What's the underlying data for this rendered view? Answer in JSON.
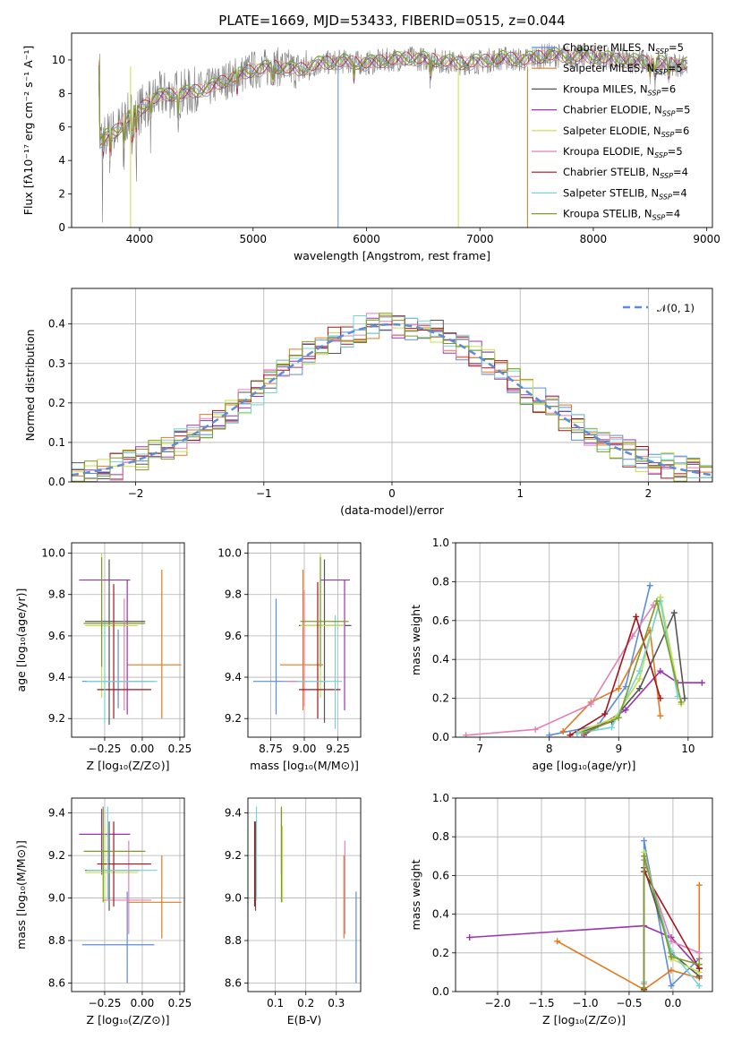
{
  "figure": {
    "title": "PLATE=1669, MJD=53433, FIBERID=0515, z=0.044"
  },
  "colors": {
    "blue": "#5b8dd9",
    "orange": "#e07b20",
    "gray": "#555555",
    "purple": "#9b33b0",
    "lime": "#c5e04a",
    "pink": "#e380b8",
    "darkred": "#a5141b",
    "cyan": "#76d3d8",
    "olive": "#7f9b25",
    "data": "#808080",
    "grid": "#b0b0b0"
  },
  "chart_data": [
    {
      "id": "spectrum",
      "type": "line",
      "xlabel": "wavelength [Angstrom, rest frame]",
      "ylabel": "Flux [fλ10⁻¹⁷ erg cm⁻² s⁻¹ A⁻¹]",
      "xlim": [
        3400,
        9050
      ],
      "ylim": [
        0,
        11.6
      ],
      "xticks": [
        "4000",
        "5000",
        "6000",
        "7000",
        "8000",
        "9000"
      ],
      "yticks": [
        "0",
        "2",
        "4",
        "6",
        "8",
        "10"
      ],
      "grid": false,
      "legend": "upper-right",
      "data_curve": {
        "x": [
          3650,
          3800,
          3900,
          4000,
          4100,
          4200,
          4400,
          4600,
          4800,
          5000,
          5200,
          5400,
          5600,
          5800,
          6000,
          6200,
          6400,
          6600,
          6800,
          7000,
          7200,
          7400,
          7600,
          7800,
          8000,
          8200,
          8400,
          8600,
          8800
        ],
        "y": [
          5.2,
          5.8,
          6.6,
          7.0,
          7.6,
          7.9,
          8.0,
          8.3,
          8.9,
          9.4,
          9.6,
          9.4,
          9.8,
          9.9,
          9.8,
          10.0,
          10.1,
          10.0,
          9.8,
          9.9,
          10.1,
          10.0,
          10.3,
          10.2,
          10.2,
          10.0,
          9.9,
          9.8,
          9.7
        ]
      },
      "series": [
        {
          "label": "Chabrier MILES, N",
          "sub": "SSP",
          "tail": "=5"
        },
        {
          "label": "Salpeter MILES, N",
          "sub": "SSP",
          "tail": "=5"
        },
        {
          "label": "Kroupa MILES, N",
          "sub": "SSP",
          "tail": "=6"
        },
        {
          "label": "Chabrier ELODIE, N",
          "sub": "SSP",
          "tail": "=5"
        },
        {
          "label": "Salpeter ELODIE, N",
          "sub": "SSP",
          "tail": "=6"
        },
        {
          "label": "Kroupa ELODIE, N",
          "sub": "SSP",
          "tail": "=5"
        },
        {
          "label": "Chabrier STELIB, N",
          "sub": "SSP",
          "tail": "=4"
        },
        {
          "label": "Salpeter STELIB, N",
          "sub": "SSP",
          "tail": "=4"
        },
        {
          "label": "Kroupa STELIB, N",
          "sub": "SSP",
          "tail": "=4"
        }
      ]
    },
    {
      "id": "residuals",
      "type": "bar",
      "xlabel": "(data-model)/error",
      "ylabel": "Normed distribution",
      "xlim": [
        -2.5,
        2.5
      ],
      "ylim": [
        0,
        0.49
      ],
      "xticks": [
        "−2",
        "−1",
        "0",
        "1",
        "2"
      ],
      "yticks": [
        "0.0",
        "0.1",
        "0.2",
        "0.3",
        "0.4"
      ],
      "grid": true,
      "legend": "upper-right",
      "gaussian_label": "𝒩(0, 1)"
    },
    {
      "id": "age-vs-z",
      "type": "scatter",
      "xlabel": "Z [log₁₀(Z/Z⊙)]",
      "ylabel": "age  [log₁₀(age/yr)]",
      "xlim": [
        -0.47,
        0.28
      ],
      "ylim": [
        9.11,
        10.05
      ],
      "xticks": [
        "−0.25",
        "0.00",
        "0.25"
      ],
      "yticks": [
        "9.2",
        "9.4",
        "9.6",
        "9.8",
        "10.0"
      ],
      "points": [
        {
          "c": "blue",
          "x": -0.16,
          "y": 9.38,
          "xe": [
            -0.4,
            0.08
          ],
          "ye": [
            9.25,
            9.63
          ]
        },
        {
          "c": "orange",
          "x": 0.13,
          "y": 9.46,
          "xe": [
            -0.1,
            0.26
          ],
          "ye": [
            9.2,
            9.92
          ]
        },
        {
          "c": "gray",
          "x": -0.22,
          "y": 9.67,
          "xe": [
            -0.38,
            0.02
          ],
          "ye": [
            9.17,
            9.97
          ]
        },
        {
          "c": "purple",
          "x": -0.1,
          "y": 9.87,
          "xe": [
            -0.42,
            -0.08
          ],
          "ye": [
            9.22,
            9.87
          ]
        },
        {
          "c": "lime",
          "x": -0.27,
          "y": 9.65,
          "xe": [
            -0.38,
            -0.03
          ],
          "ye": [
            9.3,
            10.0
          ]
        },
        {
          "c": "pink",
          "x": -0.12,
          "y": 9.38,
          "xe": [
            -0.26,
            0.04
          ],
          "ye": [
            9.24,
            9.78
          ]
        },
        {
          "c": "darkred",
          "x": -0.19,
          "y": 9.34,
          "xe": [
            -0.3,
            0.06
          ],
          "ye": [
            9.2,
            9.85
          ]
        },
        {
          "c": "cyan",
          "x": -0.25,
          "y": 9.38,
          "xe": [
            -0.37,
            0.1
          ],
          "ye": [
            9.18,
            9.66
          ]
        },
        {
          "c": "olive",
          "x": -0.27,
          "y": 9.66,
          "xe": [
            -0.39,
            0.02
          ],
          "ye": [
            9.45,
            9.98
          ]
        }
      ]
    },
    {
      "id": "age-vs-mass",
      "type": "scatter",
      "xlabel": "mass [log₁₀(M/M⊙)]",
      "ylabel": "",
      "xlim": [
        8.58,
        9.42
      ],
      "ylim": [
        9.11,
        10.05
      ],
      "xticks": [
        "8.75",
        "9.00",
        "9.25"
      ],
      "yticks": [
        "9.2",
        "9.4",
        "9.6",
        "9.8",
        "10.0"
      ],
      "points": [
        {
          "c": "blue",
          "x": 8.79,
          "y": 9.38,
          "xe": [
            8.62,
            9.02
          ],
          "ye": [
            9.22,
            9.78
          ]
        },
        {
          "c": "orange",
          "x": 8.99,
          "y": 9.46,
          "xe": [
            8.82,
            9.14
          ],
          "ye": [
            9.24,
            9.92
          ]
        },
        {
          "c": "gray",
          "x": 9.15,
          "y": 9.65,
          "xe": [
            8.96,
            9.35
          ],
          "ye": [
            9.18,
            9.97
          ]
        },
        {
          "c": "purple",
          "x": 9.3,
          "y": 9.87,
          "xe": [
            9.12,
            9.34
          ],
          "ye": [
            9.24,
            9.87
          ]
        },
        {
          "c": "lime",
          "x": 9.12,
          "y": 9.65,
          "xe": [
            8.97,
            9.3
          ],
          "ye": [
            9.3,
            10.0
          ]
        },
        {
          "c": "pink",
          "x": 9.0,
          "y": 9.38,
          "xe": [
            8.86,
            9.16
          ],
          "ye": [
            9.26,
            9.82
          ]
        },
        {
          "c": "darkred",
          "x": 9.1,
          "y": 9.34,
          "xe": [
            8.96,
            9.27
          ],
          "ye": [
            9.2,
            9.86
          ]
        },
        {
          "c": "cyan",
          "x": 9.23,
          "y": 9.38,
          "xe": [
            8.95,
            9.28
          ],
          "ye": [
            9.15,
            9.7
          ]
        },
        {
          "c": "olive",
          "x": 9.12,
          "y": 9.67,
          "xe": [
            8.97,
            9.33
          ],
          "ye": [
            9.45,
            9.98
          ]
        }
      ]
    },
    {
      "id": "weight-vs-age",
      "type": "line",
      "xlabel": "age  [log₁₀(age/yr)]",
      "ylabel": "mass weight",
      "xlim": [
        6.65,
        10.35
      ],
      "ylim": [
        0,
        1.0
      ],
      "xticks": [
        "7",
        "8",
        "9",
        "10"
      ],
      "yticks": [
        "0.0",
        "0.2",
        "0.4",
        "0.6",
        "0.8",
        "1.0"
      ],
      "series": [
        {
          "c": "blue",
          "x": [
            8.0,
            8.7,
            9.1,
            9.45
          ],
          "y": [
            0.01,
            0.06,
            0.26,
            0.78
          ]
        },
        {
          "c": "orange",
          "x": [
            8.2,
            8.6,
            9.0,
            9.45,
            9.6
          ],
          "y": [
            0.03,
            0.18,
            0.25,
            0.55,
            0.11
          ]
        },
        {
          "c": "gray",
          "x": [
            8.4,
            8.9,
            9.3,
            9.8,
            9.95
          ],
          "y": [
            0.02,
            0.08,
            0.25,
            0.64,
            0.2
          ]
        },
        {
          "c": "purple",
          "x": [
            8.5,
            9.1,
            9.6,
            9.85,
            10.2
          ],
          "y": [
            0.01,
            0.14,
            0.34,
            0.28,
            0.28
          ]
        },
        {
          "c": "lime",
          "x": [
            8.3,
            8.95,
            9.3,
            9.6,
            9.9
          ],
          "y": [
            0.01,
            0.1,
            0.3,
            0.72,
            0.17
          ]
        },
        {
          "c": "pink",
          "x": [
            6.8,
            7.8,
            8.6,
            9.2,
            9.5
          ],
          "y": [
            0.01,
            0.04,
            0.17,
            0.52,
            0.68
          ]
        },
        {
          "c": "darkred",
          "x": [
            8.3,
            8.8,
            9.25,
            9.6
          ],
          "y": [
            0.01,
            0.12,
            0.62,
            0.2
          ]
        },
        {
          "c": "cyan",
          "x": [
            8.4,
            8.9,
            9.3,
            9.6,
            9.85
          ],
          "y": [
            0.02,
            0.05,
            0.34,
            0.7,
            0.21
          ]
        },
        {
          "c": "olive",
          "x": [
            8.5,
            9.0,
            9.55,
            9.9
          ],
          "y": [
            0.02,
            0.1,
            0.7,
            0.18
          ]
        }
      ]
    },
    {
      "id": "mass-vs-z",
      "type": "scatter",
      "xlabel": "Z [log₁₀(Z/Z⊙)]",
      "ylabel": "mass [log₁₀(M/M⊙)]",
      "xlim": [
        -0.47,
        0.28
      ],
      "ylim": [
        8.56,
        9.47
      ],
      "xticks": [
        "−0.25",
        "0.00",
        "0.25"
      ],
      "yticks": [
        "8.6",
        "8.8",
        "9.0",
        "9.2",
        "9.4"
      ],
      "points": [
        {
          "c": "blue",
          "x": -0.1,
          "y": 8.78,
          "xe": [
            -0.4,
            0.08
          ],
          "ye": [
            8.6,
            9.03
          ]
        },
        {
          "c": "orange",
          "x": 0.13,
          "y": 8.98,
          "xe": [
            -0.1,
            0.26
          ],
          "ye": [
            8.81,
            9.2
          ]
        },
        {
          "c": "gray",
          "x": -0.22,
          "y": 9.13,
          "xe": [
            -0.38,
            -0.02
          ],
          "ye": [
            8.94,
            9.36
          ]
        },
        {
          "c": "purple",
          "x": -0.27,
          "y": 9.3,
          "xe": [
            -0.42,
            -0.08
          ],
          "ye": [
            9.11,
            9.42
          ]
        },
        {
          "c": "lime",
          "x": -0.25,
          "y": 9.12,
          "xe": [
            -0.38,
            -0.03
          ],
          "ye": [
            8.98,
            9.34
          ]
        },
        {
          "c": "pink",
          "x": -0.09,
          "y": 8.99,
          "xe": [
            -0.26,
            0.06
          ],
          "ye": [
            8.83,
            9.27
          ]
        },
        {
          "c": "darkred",
          "x": -0.19,
          "y": 9.16,
          "xe": [
            -0.3,
            0.06
          ],
          "ye": [
            8.96,
            9.36
          ]
        },
        {
          "c": "cyan",
          "x": -0.23,
          "y": 9.13,
          "xe": [
            -0.37,
            0.1
          ],
          "ye": [
            8.99,
            9.43
          ]
        },
        {
          "c": "olive",
          "x": -0.26,
          "y": 9.22,
          "xe": [
            -0.39,
            0.02
          ],
          "ye": [
            8.98,
            9.43
          ]
        }
      ]
    },
    {
      "id": "mass-vs-ebv",
      "type": "scatter",
      "xlabel": "E(B-V)",
      "ylabel": "",
      "xlim": [
        0.01,
        0.38
      ],
      "ylim": [
        8.56,
        9.47
      ],
      "xticks": [
        "0.1",
        "0.2",
        "0.3"
      ],
      "yticks": [
        "8.6",
        "8.8",
        "9.0",
        "9.2",
        "9.4"
      ],
      "points": [
        {
          "c": "blue",
          "x": 0.365,
          "y": 8.78,
          "xe": [
            0.365,
            0.365
          ],
          "ye": [
            8.6,
            9.03
          ]
        },
        {
          "c": "orange",
          "x": 0.325,
          "y": 8.98,
          "xe": [
            0.325,
            0.325
          ],
          "ye": [
            8.81,
            9.2
          ]
        },
        {
          "c": "gray",
          "x": 0.035,
          "y": 9.13,
          "xe": [
            0.035,
            0.035
          ],
          "ye": [
            8.94,
            9.36
          ]
        },
        {
          "c": "purple",
          "x": 0.12,
          "y": 9.3,
          "xe": [
            0.12,
            0.12
          ],
          "ye": [
            9.11,
            9.42
          ]
        },
        {
          "c": "lime",
          "x": 0.123,
          "y": 9.12,
          "xe": [
            0.123,
            0.123
          ],
          "ye": [
            8.98,
            9.34
          ]
        },
        {
          "c": "pink",
          "x": 0.328,
          "y": 8.99,
          "xe": [
            0.328,
            0.328
          ],
          "ye": [
            8.83,
            9.27
          ]
        },
        {
          "c": "darkred",
          "x": 0.032,
          "y": 9.16,
          "xe": [
            0.032,
            0.032
          ],
          "ye": [
            8.96,
            9.36
          ]
        },
        {
          "c": "cyan",
          "x": 0.038,
          "y": 9.13,
          "xe": [
            0.038,
            0.038
          ],
          "ye": [
            8.99,
            9.43
          ]
        },
        {
          "c": "olive",
          "x": 0.12,
          "y": 9.22,
          "xe": [
            0.12,
            0.12
          ],
          "ye": [
            8.98,
            9.43
          ]
        }
      ]
    },
    {
      "id": "weight-vs-z",
      "type": "line",
      "xlabel": "Z [log₁₀(Z/Z⊙)]",
      "ylabel": "mass weight",
      "xlim": [
        -2.48,
        0.45
      ],
      "ylim": [
        0,
        1.0
      ],
      "xticks": [
        "−2.0",
        "−1.5",
        "−1.0",
        "−0.5",
        "0.0"
      ],
      "yticks": [
        "0.0",
        "0.2",
        "0.4",
        "0.6",
        "0.8",
        "1.0"
      ],
      "series": [
        {
          "c": "blue",
          "x": [
            -0.33,
            -0.33,
            -0.02,
            0.3
          ],
          "y": [
            0.0,
            0.78,
            0.03,
            0.17
          ]
        },
        {
          "c": "orange",
          "x": [
            -1.32,
            -0.33,
            -0.02,
            0.3,
            0.3
          ],
          "y": [
            0.26,
            0.01,
            0.11,
            0.07,
            0.55
          ]
        },
        {
          "c": "gray",
          "x": [
            -0.33,
            -0.33,
            -0.02,
            0.3
          ],
          "y": [
            0.02,
            0.64,
            0.2,
            0.08
          ]
        },
        {
          "c": "purple",
          "x": [
            -2.32,
            -0.33,
            -0.02,
            0.3
          ],
          "y": [
            0.28,
            0.34,
            0.28,
            0.12
          ]
        },
        {
          "c": "lime",
          "x": [
            -0.33,
            -0.33,
            -0.02,
            0.3
          ],
          "y": [
            0.01,
            0.72,
            0.17,
            0.1
          ]
        },
        {
          "c": "pink",
          "x": [
            -0.33,
            -0.33,
            -0.02,
            0.3
          ],
          "y": [
            0.04,
            0.68,
            0.26,
            0.2
          ]
        },
        {
          "c": "darkred",
          "x": [
            -0.33,
            -0.33,
            0.3
          ],
          "y": [
            0.01,
            0.62,
            0.12
          ]
        },
        {
          "c": "cyan",
          "x": [
            -0.33,
            -0.33,
            -0.02,
            0.3
          ],
          "y": [
            0.05,
            0.7,
            0.21,
            0.03
          ]
        },
        {
          "c": "olive",
          "x": [
            -0.33,
            -0.33,
            -0.02,
            0.3
          ],
          "y": [
            0.02,
            0.7,
            0.18,
            0.14
          ]
        }
      ]
    }
  ]
}
